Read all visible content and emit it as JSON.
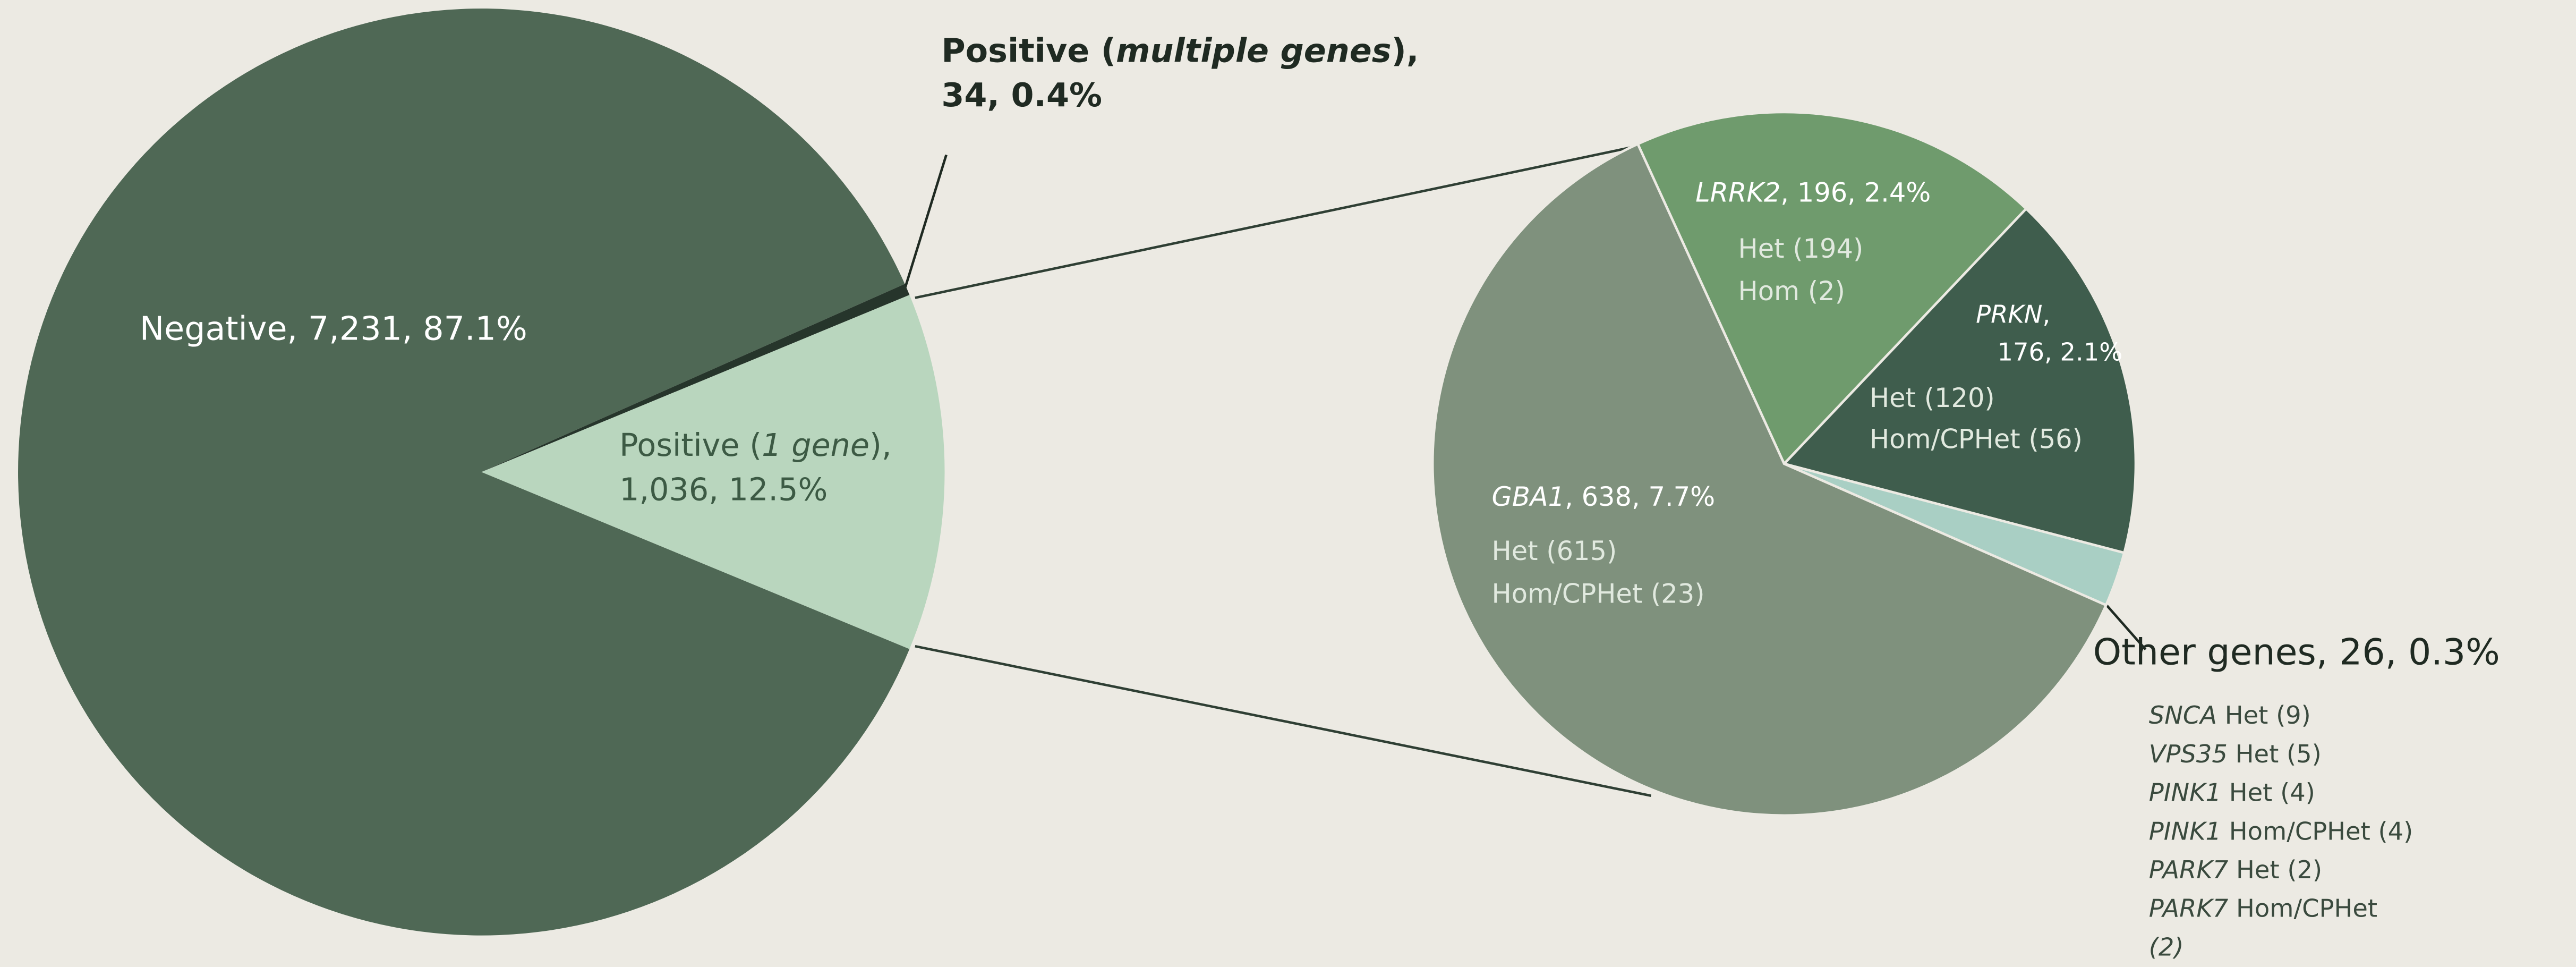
{
  "chart_data": [
    {
      "type": "pie",
      "categories": [
        "Negative",
        "Positive (1 gene)",
        "Positive (multiple genes)"
      ],
      "values": [
        7231,
        1036,
        34
      ],
      "labels": [
        [
          "Negative, 7,231, 87.1%"
        ],
        [
          "Positive (1 gene),",
          "1,036, 12.5%"
        ],
        [
          "Positive (multiple genes),",
          "34, 0.4%"
        ]
      ],
      "colors": [
        "#4f6855",
        "#b9d6be",
        "#26352b"
      ]
    },
    {
      "type": "pie",
      "categories": [
        "GBA1",
        "LRRK2",
        "PRKN",
        "Other genes"
      ],
      "values": [
        638,
        196,
        176,
        26
      ],
      "labels": [
        [
          "GBA1, 638, 7.7%"
        ],
        [
          "LRRK2, 196, 2.4%"
        ],
        [
          "PRKN,",
          "176, 2.1%"
        ],
        [
          "Other genes, 26, 0.3%"
        ]
      ],
      "details": [
        [
          "Het (615)",
          "Hom/CPHet (23)"
        ],
        [
          "Het (194)",
          "Hom (2)"
        ],
        [
          "Het (120)",
          "Hom/CPHet (56)"
        ],
        [
          "SNCA Het (9)",
          "VPS35 Het (5)",
          "PINK1 Het (4)",
          "PINK1 Hom/CPHet (4)",
          "PARK7 Het (2)",
          "PARK7 Hom/CPHet",
          "(2)"
        ]
      ],
      "colors": [
        "#7f917d",
        "#6f9b6d",
        "#3f5d4d",
        "#a9cfc4"
      ]
    }
  ]
}
